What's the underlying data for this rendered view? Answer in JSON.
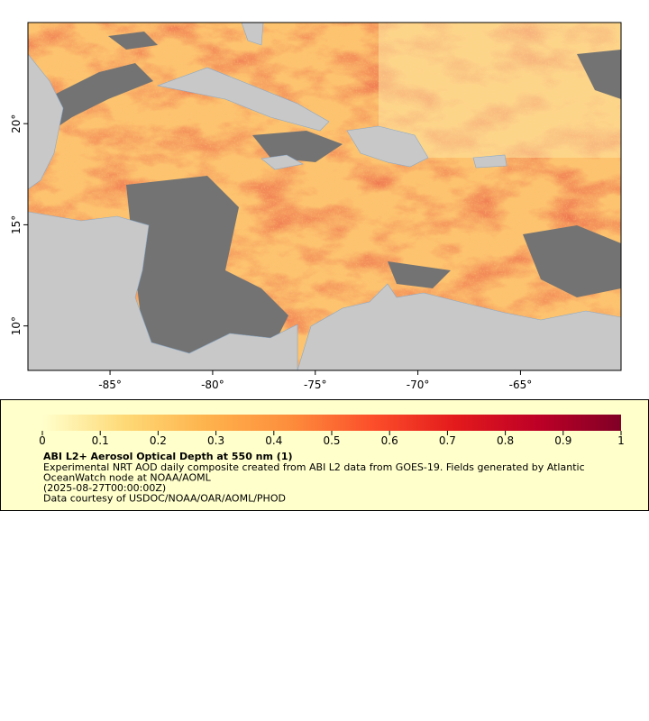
{
  "map": {
    "type": "map",
    "xlim": [
      -89,
      -60.1
    ],
    "ylim": [
      7.8,
      25
    ],
    "xticks": [
      {
        "value": -85,
        "label": "-85°"
      },
      {
        "value": -80,
        "label": "-80°"
      },
      {
        "value": -75,
        "label": "-75°"
      },
      {
        "value": -70,
        "label": "-70°"
      },
      {
        "value": -65,
        "label": "-65°"
      }
    ],
    "yticks": [
      {
        "value": 10,
        "label": "10°"
      },
      {
        "value": 15,
        "label": "15°"
      },
      {
        "value": 20,
        "label": "20°"
      }
    ],
    "colorbar": {
      "lim": [
        0,
        1
      ],
      "ticks": [
        0,
        0.1,
        0.2,
        0.3,
        0.4,
        0.5,
        0.6,
        0.7,
        0.8,
        0.9,
        1
      ],
      "colors": [
        "#ffffcc",
        "#fed976",
        "#feb24c",
        "#fd8d3c",
        "#fc4e2a",
        "#e31a1c",
        "#bd0026",
        "#800026"
      ]
    },
    "legend": {
      "title": "ABI L2+ Aerosol Optical Depth at 550 nm (1)",
      "lines": [
        "Experimental NRT AOD daily composite created from ABI L2 data from GOES-19. Fields generated by Atlantic",
        "OceanWatch node at NOAA/AOML",
        "(2025-08-27T00:00:00Z)",
        "Data courtesy of USDOC/NOAA/OAR/AOML/PHOD"
      ]
    }
  }
}
